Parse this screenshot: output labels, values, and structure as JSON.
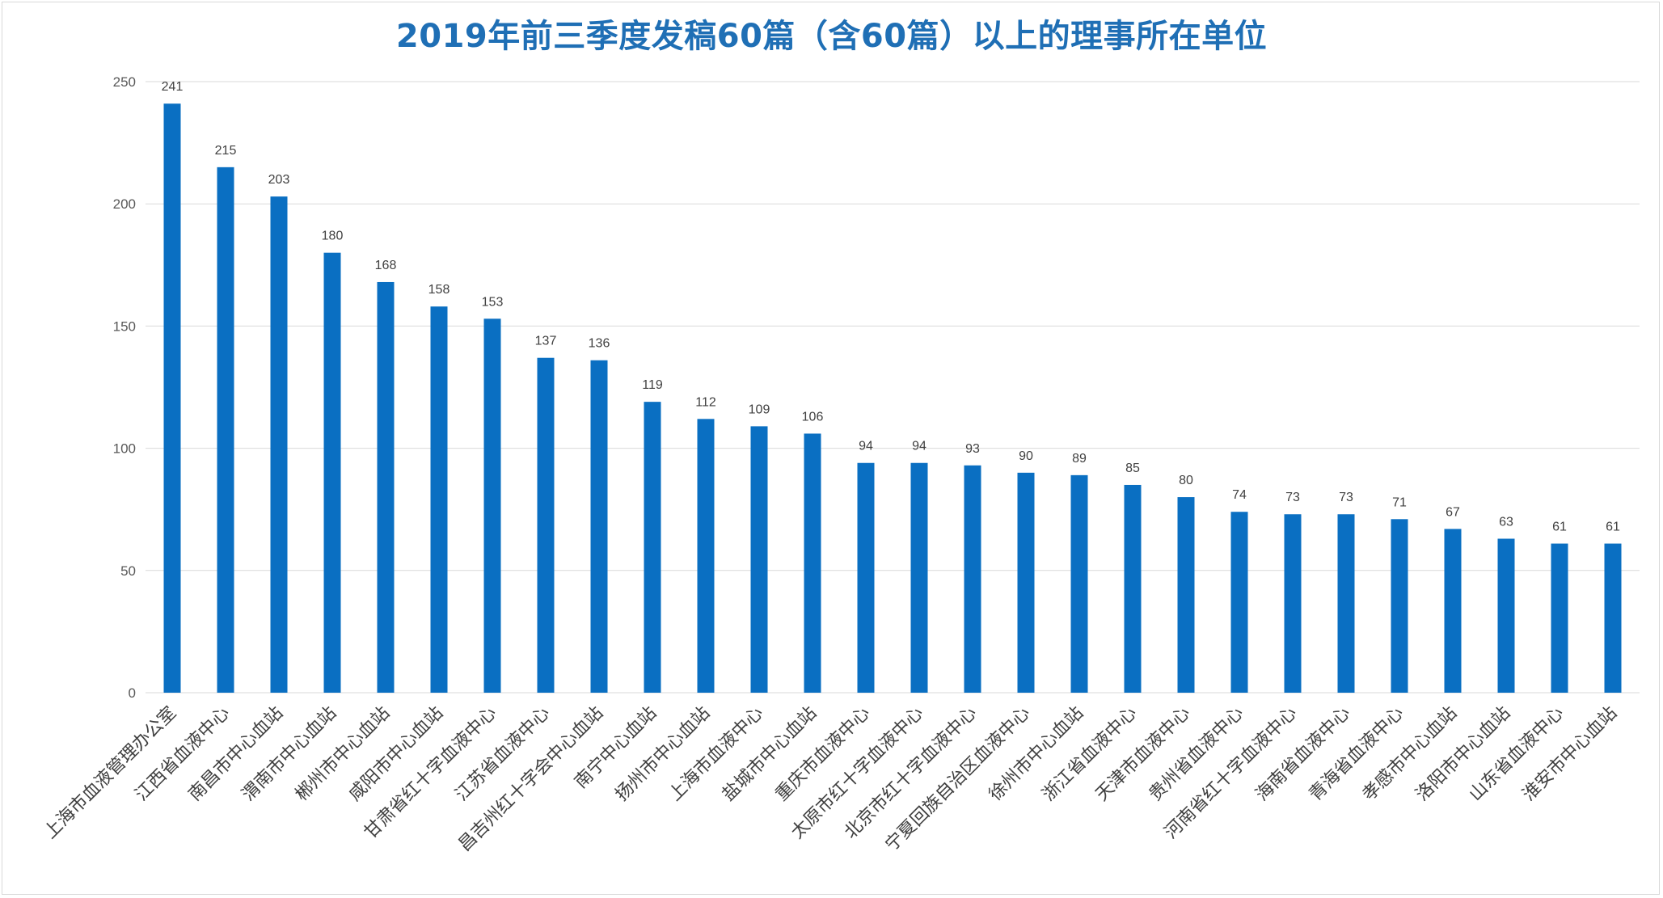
{
  "chart_data": {
    "type": "bar",
    "title": "2019年前三季度发稿60篇（含60篇）以上的理事所在单位",
    "xlabel": "",
    "ylabel": "",
    "ylim": [
      0,
      250
    ],
    "yticks": [
      0,
      50,
      100,
      150,
      200,
      250
    ],
    "grid": true,
    "legend": "none",
    "bar_color": "#0a6fc2",
    "categories": [
      "上海市血液管理办公室",
      "江西省血液中心",
      "南昌市中心血站",
      "渭南市中心血站",
      "郴州市中心血站",
      "咸阳市中心血站",
      "甘肃省红十字血液中心",
      "江苏省血液中心",
      "昌吉州红十字会中心血站",
      "南宁中心血站",
      "扬州市中心血站",
      "上海市血液中心",
      "盐城市中心血站",
      "重庆市血液中心",
      "太原市红十字血液中心",
      "北京市红十字血液中心",
      "宁夏回族自治区血液中心",
      "徐州市中心血站",
      "浙江省血液中心",
      "天津市血液中心",
      "贵州省血液中心",
      "河南省红十字血液中心",
      "海南省血液中心",
      "青海省血液中心",
      "孝感市中心血站",
      "洛阳市中心血站",
      "山东省血液中心",
      "淮安市中心血站"
    ],
    "values": [
      241,
      215,
      203,
      180,
      168,
      158,
      153,
      137,
      136,
      119,
      112,
      109,
      106,
      94,
      94,
      93,
      90,
      89,
      85,
      80,
      74,
      73,
      73,
      71,
      67,
      63,
      61,
      61
    ]
  }
}
